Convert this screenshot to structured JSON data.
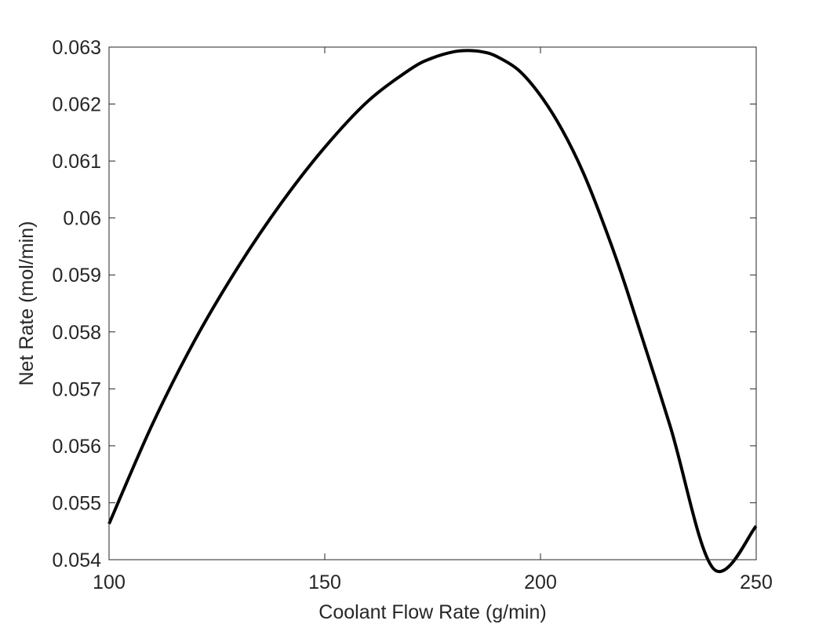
{
  "chart_data": {
    "type": "line",
    "xlabel": "Coolant Flow Rate (g/min)",
    "ylabel": "Net Rate (mol/min)",
    "xlim": [
      100,
      250
    ],
    "ylim": [
      0.054,
      0.063
    ],
    "xticks": [
      100,
      150,
      200,
      250
    ],
    "xtick_labels": [
      "100",
      "150",
      "200",
      "250"
    ],
    "yticks": [
      0.054,
      0.055,
      0.056,
      0.057,
      0.058,
      0.059,
      0.06,
      0.061,
      0.062,
      0.063
    ],
    "ytick_labels": [
      "0.054",
      "0.055",
      "0.056",
      "0.057",
      "0.058",
      "0.059",
      "0.06",
      "0.061",
      "0.062",
      "0.063"
    ],
    "grid": false,
    "box": true,
    "series": [
      {
        "color": "#000000",
        "x": [
          100,
          110,
          120,
          130,
          140,
          150,
          160,
          170,
          175,
          180,
          183.5,
          187,
          190,
          195,
          200,
          205,
          210,
          215,
          220,
          230,
          240,
          250
        ],
        "y": [
          0.05463,
          0.05637,
          0.05787,
          0.05915,
          0.06027,
          0.06124,
          0.06205,
          0.06262,
          0.06281,
          0.06292,
          0.06294,
          0.06291,
          0.06283,
          0.06259,
          0.06215,
          0.06155,
          0.06078,
          0.05982,
          0.05874,
          0.05636,
          0.05385,
          0.05459
        ]
      }
    ]
  }
}
